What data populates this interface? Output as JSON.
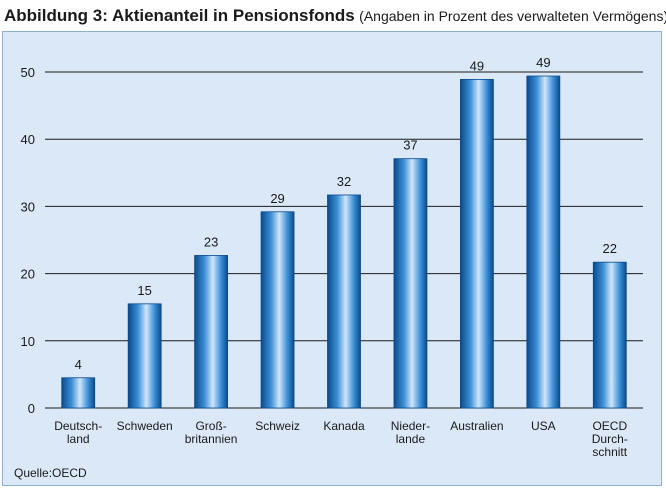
{
  "figure": {
    "title": "Abbildung 3: Aktienanteil in Pensionsfonds",
    "subtitle": "(Angaben in Prozent des verwalteten Vermögens)",
    "source": "Quelle:OECD"
  },
  "colors": {
    "panel_background": "#dbe8f7",
    "bar_light": "#cfe6fb",
    "bar_mid": "#3b8fd6",
    "bar_dark": "#0b4a8c",
    "gridline": "#1a1a1a"
  },
  "chart_data": {
    "type": "bar",
    "title": "Abbildung 3: Aktienanteil in Pensionsfonds",
    "subtitle": "(Angaben in Prozent des verwalteten Vermögens)",
    "categories": [
      [
        "Deutsch-",
        "land"
      ],
      [
        "Schweden"
      ],
      [
        "Groß-",
        "britannien"
      ],
      [
        "Schweiz"
      ],
      [
        "Kanada"
      ],
      [
        "Nieder-",
        "lande"
      ],
      [
        "Australien"
      ],
      [
        "USA"
      ],
      [
        "OECD",
        "Durch-",
        "schnitt"
      ]
    ],
    "values": [
      4.5,
      15.5,
      22.7,
      29.2,
      31.7,
      37.1,
      48.9,
      49.4,
      21.7
    ],
    "labels": [
      "4",
      "15",
      "23",
      "29",
      "32",
      "37",
      "49",
      "49",
      "22"
    ],
    "yticks": [
      0,
      10,
      20,
      30,
      40,
      50
    ],
    "ylim": [
      0,
      50
    ],
    "grid": true,
    "source": "Quelle:OECD"
  }
}
